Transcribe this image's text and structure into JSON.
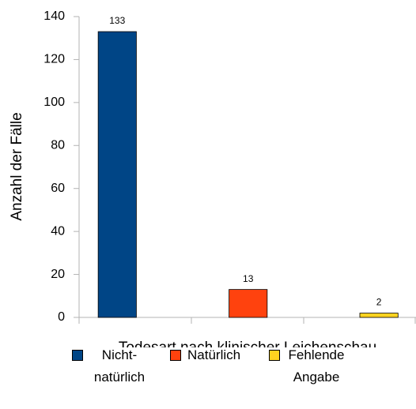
{
  "chart_data": {
    "type": "bar",
    "x_label": "Todesart nach klinischer Leichenschau",
    "y_label": "Anzahl der Fälle",
    "categories": [
      "Nicht-natürlich",
      "Natürlich",
      "Fehlende Angabe"
    ],
    "values": [
      133,
      13,
      2
    ],
    "colors": [
      "#004586",
      "#ff420e",
      "#ffd320"
    ],
    "ylim": [
      0,
      140
    ],
    "yticks": [
      0,
      20,
      40,
      60,
      80,
      100,
      120,
      140
    ],
    "grid": false,
    "legend": "bottom"
  }
}
